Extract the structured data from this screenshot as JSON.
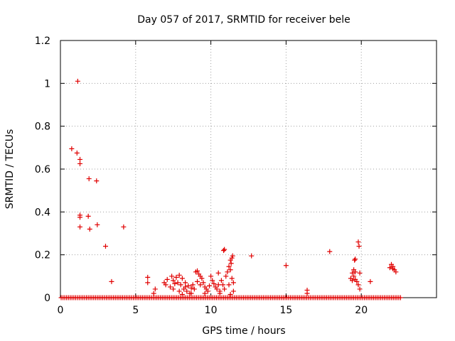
{
  "chart_data": {
    "type": "scatter",
    "title": "Day 057 of 2017, SRMTID for receiver bele",
    "xlabel": "GPS time / hours",
    "ylabel": "SRMTID / TECUs",
    "xlim": [
      0,
      25
    ],
    "ylim": [
      0,
      1.2
    ],
    "xticks": [
      0,
      5,
      10,
      15,
      20
    ],
    "xtick_labels": [
      "0",
      "5",
      "10",
      "15",
      "20"
    ],
    "yticks": [
      0,
      0.2,
      0.4,
      0.6,
      0.8,
      1,
      1.2
    ],
    "ytick_labels": [
      "0",
      "0.2",
      "0.4",
      "0.6",
      "0.8",
      "1",
      "1.2"
    ],
    "grid": true,
    "marker": "+",
    "marker_color": "#e00000",
    "zero_baseline": {
      "x_start": 0.05,
      "x_end": 22.7,
      "step": 0.12,
      "y": 0
    },
    "points": [
      [
        1.15,
        1.01
      ],
      [
        0.75,
        0.695
      ],
      [
        1.1,
        0.675
      ],
      [
        1.3,
        0.645
      ],
      [
        1.3,
        0.625
      ],
      [
        1.9,
        0.555
      ],
      [
        2.4,
        0.545
      ],
      [
        1.3,
        0.385
      ],
      [
        1.3,
        0.375
      ],
      [
        1.85,
        0.38
      ],
      [
        1.3,
        0.33
      ],
      [
        1.95,
        0.32
      ],
      [
        2.45,
        0.34
      ],
      [
        4.2,
        0.33
      ],
      [
        3.0,
        0.24
      ],
      [
        3.4,
        0.075
      ],
      [
        5.8,
        0.095
      ],
      [
        5.8,
        0.07
      ],
      [
        6.2,
        0.02
      ],
      [
        6.3,
        0.04
      ],
      [
        6.9,
        0.07
      ],
      [
        7.0,
        0.06
      ],
      [
        7.1,
        0.085
      ],
      [
        7.3,
        0.05
      ],
      [
        7.4,
        0.1
      ],
      [
        7.5,
        0.08
      ],
      [
        7.6,
        0.065
      ],
      [
        7.7,
        0.095
      ],
      [
        7.8,
        0.07
      ],
      [
        7.9,
        0.105
      ],
      [
        8.0,
        0.06
      ],
      [
        8.1,
        0.09
      ],
      [
        8.2,
        0.04
      ],
      [
        8.3,
        0.07
      ],
      [
        8.4,
        0.03
      ],
      [
        8.5,
        0.055
      ],
      [
        8.6,
        0.02
      ],
      [
        8.7,
        0.045
      ],
      [
        8.8,
        0.06
      ],
      [
        8.9,
        0.04
      ],
      [
        7.5,
        0.04
      ],
      [
        7.9,
        0.03
      ],
      [
        8.1,
        0.015
      ],
      [
        8.3,
        0.05
      ],
      [
        8.7,
        0.02
      ],
      [
        9.0,
        0.12
      ],
      [
        9.1,
        0.125
      ],
      [
        9.2,
        0.11
      ],
      [
        9.3,
        0.1
      ],
      [
        9.4,
        0.09
      ],
      [
        9.1,
        0.075
      ],
      [
        9.3,
        0.06
      ],
      [
        9.5,
        0.07
      ],
      [
        9.6,
        0.05
      ],
      [
        9.7,
        0.04
      ],
      [
        9.8,
        0.03
      ],
      [
        9.9,
        0.055
      ],
      [
        10.0,
        0.1
      ],
      [
        10.1,
        0.08
      ],
      [
        10.2,
        0.065
      ],
      [
        10.3,
        0.05
      ],
      [
        10.4,
        0.04
      ],
      [
        10.5,
        0.06
      ],
      [
        10.6,
        0.03
      ],
      [
        10.7,
        0.08
      ],
      [
        10.5,
        0.115
      ],
      [
        10.8,
        0.06
      ],
      [
        10.9,
        0.04
      ],
      [
        10.6,
        0.02
      ],
      [
        9.6,
        0.02
      ],
      [
        10.85,
        0.22
      ],
      [
        10.9,
        0.225
      ],
      [
        11.0,
        0.1
      ],
      [
        11.1,
        0.12
      ],
      [
        11.2,
        0.145
      ],
      [
        11.3,
        0.175
      ],
      [
        11.35,
        0.16
      ],
      [
        11.4,
        0.185
      ],
      [
        11.45,
        0.195
      ],
      [
        11.3,
        0.13
      ],
      [
        11.4,
        0.09
      ],
      [
        11.5,
        0.07
      ],
      [
        11.2,
        0.06
      ],
      [
        11.5,
        0.03
      ],
      [
        11.3,
        0.015
      ],
      [
        12.7,
        0.195
      ],
      [
        15.0,
        0.15
      ],
      [
        16.4,
        0.035
      ],
      [
        16.4,
        0.02
      ],
      [
        17.9,
        0.215
      ],
      [
        19.6,
        0.18
      ],
      [
        19.55,
        0.175
      ],
      [
        19.5,
        0.13
      ],
      [
        19.6,
        0.12
      ],
      [
        19.4,
        0.115
      ],
      [
        19.5,
        0.1
      ],
      [
        19.3,
        0.09
      ],
      [
        19.4,
        0.08
      ],
      [
        19.6,
        0.085
      ],
      [
        19.7,
        0.075
      ],
      [
        19.8,
        0.26
      ],
      [
        19.85,
        0.24
      ],
      [
        19.9,
        0.115
      ],
      [
        19.8,
        0.06
      ],
      [
        19.9,
        0.04
      ],
      [
        20.6,
        0.075
      ],
      [
        21.9,
        0.14
      ],
      [
        22.0,
        0.155
      ],
      [
        22.1,
        0.145
      ],
      [
        22.2,
        0.13
      ],
      [
        22.3,
        0.12
      ],
      [
        22.1,
        0.135
      ]
    ]
  }
}
